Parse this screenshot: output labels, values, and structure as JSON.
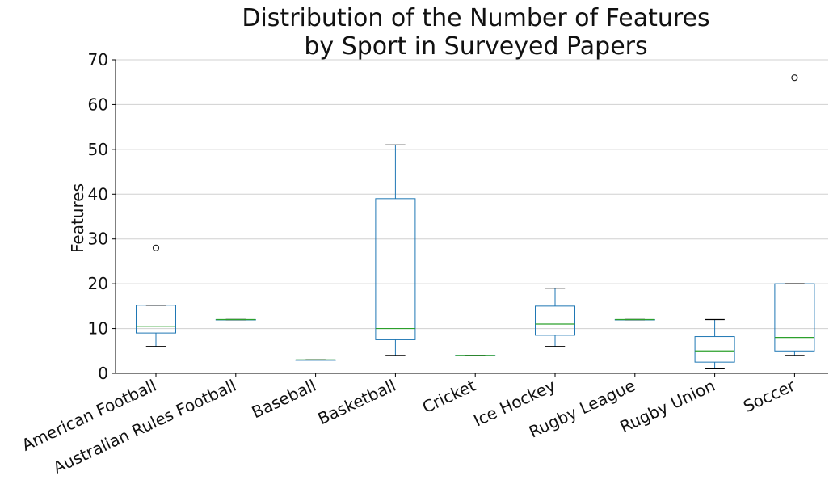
{
  "chart_data": {
    "type": "box",
    "title_lines": [
      "Distribution of the Number of Features",
      "by Sport in Surveyed Papers"
    ],
    "ylabel": "Features",
    "xlabel": "",
    "ylim": [
      0,
      70
    ],
    "yticks": [
      0,
      10,
      20,
      30,
      40,
      50,
      60,
      70
    ],
    "grid": "horizontal",
    "colors": {
      "box": "#1f77b4",
      "median": "#2ca02c",
      "whisker": "#000000",
      "grid": "#d0d0d0"
    },
    "categories": [
      "American Football",
      "Australian Rules Football",
      "Baseball",
      "Basketball",
      "Cricket",
      "Ice Hockey",
      "Rugby League",
      "Rugby Union",
      "Soccer"
    ],
    "boxes": [
      {
        "category": "American Football",
        "whisker_low": 6,
        "q1": 9,
        "median": 10.5,
        "q3": 15.2,
        "whisker_high": 15.2,
        "outliers": [
          28
        ]
      },
      {
        "category": "Australian Rules Football",
        "whisker_low": 12,
        "q1": 12,
        "median": 12,
        "q3": 12,
        "whisker_high": 12,
        "outliers": []
      },
      {
        "category": "Baseball",
        "whisker_low": 3,
        "q1": 3,
        "median": 3,
        "q3": 3,
        "whisker_high": 3,
        "outliers": []
      },
      {
        "category": "Basketball",
        "whisker_low": 4,
        "q1": 7.5,
        "median": 10,
        "q3": 39,
        "whisker_high": 51,
        "outliers": []
      },
      {
        "category": "Cricket",
        "whisker_low": 4,
        "q1": 4,
        "median": 4,
        "q3": 4,
        "whisker_high": 4,
        "outliers": []
      },
      {
        "category": "Ice Hockey",
        "whisker_low": 6,
        "q1": 8.5,
        "median": 11,
        "q3": 15,
        "whisker_high": 19,
        "outliers": []
      },
      {
        "category": "Rugby League",
        "whisker_low": 12,
        "q1": 12,
        "median": 12,
        "q3": 12,
        "whisker_high": 12,
        "outliers": []
      },
      {
        "category": "Rugby Union",
        "whisker_low": 1,
        "q1": 2.5,
        "median": 5,
        "q3": 8.2,
        "whisker_high": 12,
        "outliers": []
      },
      {
        "category": "Soccer",
        "whisker_low": 4,
        "q1": 5,
        "median": 8,
        "q3": 20,
        "whisker_high": 20,
        "outliers": [
          66
        ]
      }
    ]
  }
}
